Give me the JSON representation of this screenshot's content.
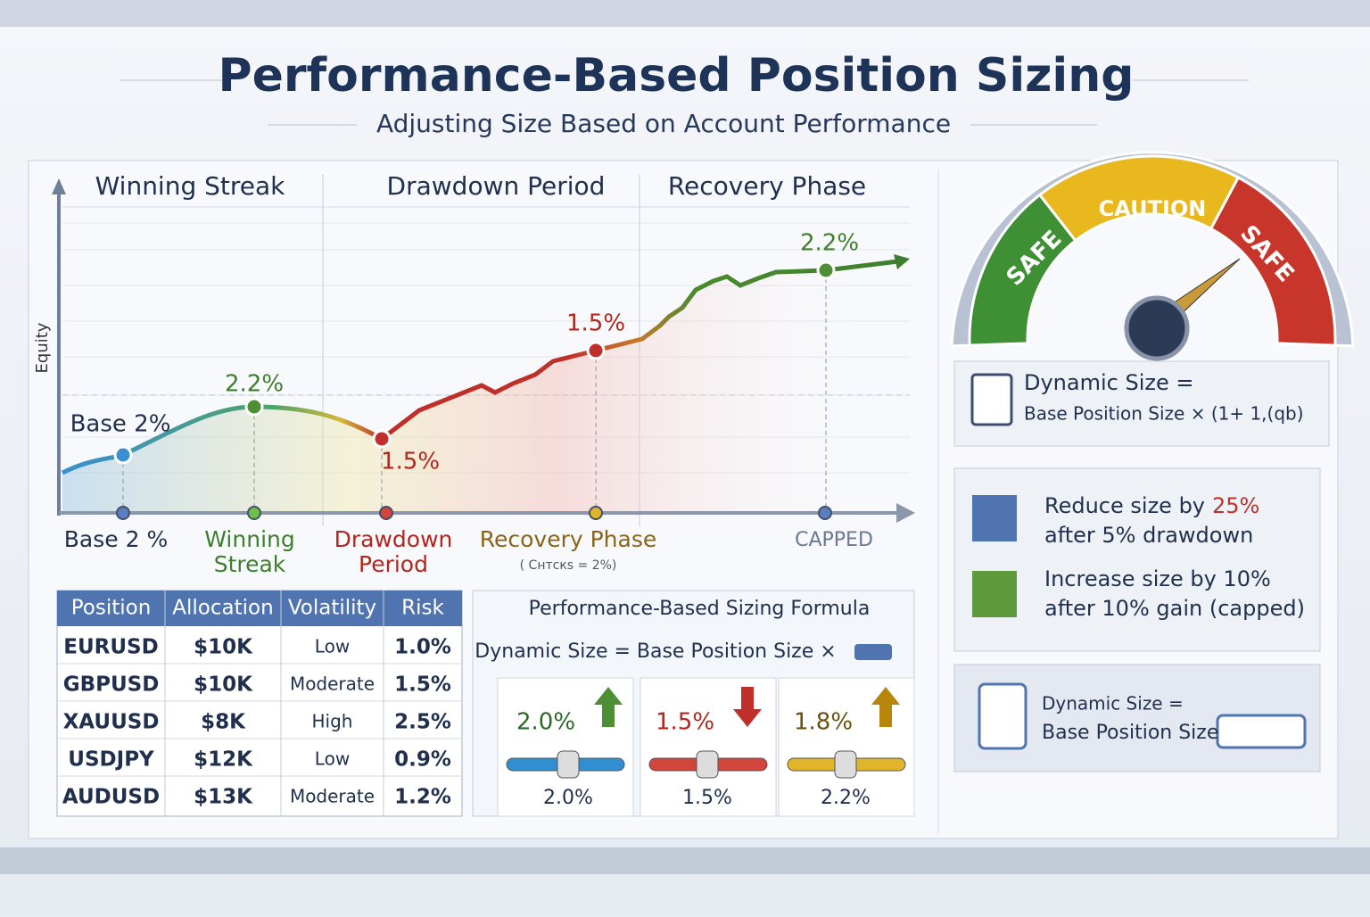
{
  "header": {
    "title": "Performance-Based Position Sizing",
    "subtitle": "Adjusting Size Based on Account Performance"
  },
  "equity_chart": {
    "phases": [
      "Winning Streak",
      "Drawdown Period",
      "Recovery Phase"
    ],
    "y_axis_label": "Equity",
    "point_labels": [
      "Base 2%",
      "2.2%",
      "1.5%",
      "1.5%",
      "2.2%"
    ],
    "x_labels": [
      [
        "Base 2 %"
      ],
      [
        "Winning",
        "Streak"
      ],
      [
        "Drawdown",
        "Period"
      ],
      [
        "Recovery Phase"
      ],
      [
        "CAPPED"
      ]
    ],
    "recovery_note": "( Cнтcкs = 2%)"
  },
  "table": {
    "columns": [
      "Position",
      "Allocation",
      "Volatility",
      "Risk"
    ],
    "rows": [
      [
        "EURUSD",
        "$10K",
        "Low",
        "1.0%"
      ],
      [
        "GBPUSD",
        "$10K",
        "Moderate",
        "1.5%"
      ],
      [
        "XAUUSD",
        "$8K",
        "High",
        "2.5%"
      ],
      [
        "USDJPY",
        "$12K",
        "Low",
        "0.9%"
      ],
      [
        "AUDUSD",
        "$13K",
        "Moderate",
        "1.2%"
      ]
    ]
  },
  "formula_panel": {
    "title": "Performance-Based Sizing Formula",
    "formula": "Dynamic Size = Base Position Size ×",
    "sliders": [
      {
        "top": "2.0%",
        "bottom": "2.0%"
      },
      {
        "top": "1.5%",
        "bottom": "1.5%"
      },
      {
        "top": "1.8%",
        "bottom": "2.2%"
      }
    ]
  },
  "gauge": {
    "labels": [
      "SAFE",
      "CAUTION",
      "SAFE"
    ]
  },
  "dynamic_box": {
    "line1": "Dynamic Size =",
    "line2": "Base Position Size × (1+ 1,(qb)"
  },
  "rules": [
    {
      "line1": "Reduce size by",
      "highlight": "25%",
      "line2": "after 5% drawdown"
    },
    {
      "line1": "Increase size by 10%",
      "line2": "after 10% gain (capped)"
    }
  ],
  "summary_box": {
    "line1": "Dynamic Size =",
    "line2": "Base Position Size"
  }
}
